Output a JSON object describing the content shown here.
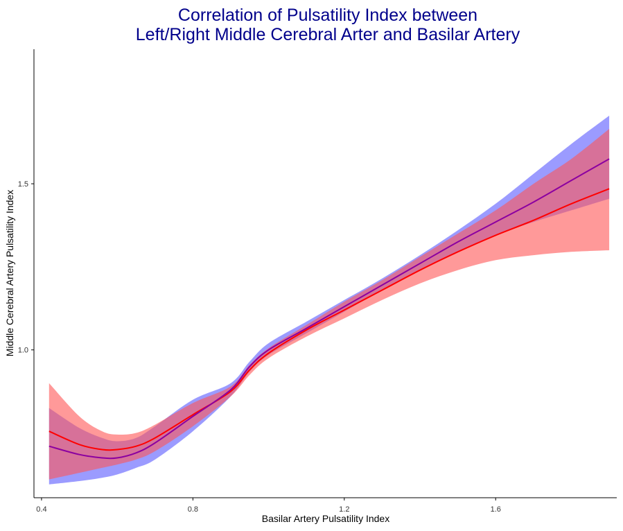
{
  "chart_data": {
    "type": "line",
    "title_lines": [
      "Correlation of Pulsatility Index between",
      "Left/Right Middle Cerebral Arter and Basilar Artery"
    ],
    "xlabel": "Basilar Artery Pulsatility Index",
    "ylabel": "Middle Cerebral Artery Pulsatility Index",
    "xlim": [
      0.38,
      1.92
    ],
    "ylim": [
      0.555,
      1.905
    ],
    "x_ticks": [
      0.4,
      0.8,
      1.2,
      1.6
    ],
    "x_tick_labels": [
      "0.4",
      "0.8",
      "1.2",
      "1.6"
    ],
    "y_ticks": [
      1.0,
      1.5
    ],
    "y_tick_labels": [
      "1.0",
      "1.5"
    ],
    "grid": false,
    "legend": "none",
    "x": [
      0.42,
      0.5,
      0.56,
      0.6,
      0.65,
      0.7,
      0.8,
      0.9,
      0.95,
      1.0,
      1.1,
      1.2,
      1.3,
      1.4,
      1.5,
      1.6,
      1.7,
      1.8,
      1.9
    ],
    "series": [
      {
        "color": "#8B00A0",
        "band_color": "#6666FF",
        "band_opacity": 0.65,
        "values": [
          0.71,
          0.685,
          0.675,
          0.675,
          0.69,
          0.72,
          0.8,
          0.88,
          0.95,
          1.0,
          1.065,
          1.13,
          1.195,
          1.26,
          1.325,
          1.385,
          1.445,
          1.51,
          1.575
        ],
        "lower": [
          0.595,
          0.605,
          0.615,
          0.625,
          0.645,
          0.67,
          0.755,
          0.86,
          0.935,
          0.985,
          1.05,
          1.115,
          1.18,
          1.24,
          1.295,
          1.345,
          1.385,
          1.42,
          1.455
        ],
        "upper": [
          0.825,
          0.765,
          0.735,
          0.725,
          0.735,
          0.77,
          0.85,
          0.9,
          0.965,
          1.02,
          1.085,
          1.15,
          1.215,
          1.285,
          1.36,
          1.44,
          1.53,
          1.62,
          1.705
        ]
      },
      {
        "color": "#FF0000",
        "band_color": "#FF5555",
        "band_opacity": 0.6,
        "values": [
          0.755,
          0.715,
          0.7,
          0.7,
          0.71,
          0.735,
          0.805,
          0.875,
          0.94,
          0.99,
          1.06,
          1.12,
          1.18,
          1.24,
          1.295,
          1.345,
          1.39,
          1.44,
          1.485
        ],
        "lower": [
          0.61,
          0.63,
          0.645,
          0.655,
          0.67,
          0.695,
          0.77,
          0.86,
          0.925,
          0.975,
          1.04,
          1.095,
          1.15,
          1.2,
          1.24,
          1.27,
          1.285,
          1.295,
          1.3
        ],
        "upper": [
          0.9,
          0.8,
          0.755,
          0.745,
          0.75,
          0.775,
          0.84,
          0.89,
          0.955,
          1.005,
          1.075,
          1.145,
          1.21,
          1.28,
          1.35,
          1.42,
          1.5,
          1.575,
          1.665
        ]
      }
    ]
  }
}
